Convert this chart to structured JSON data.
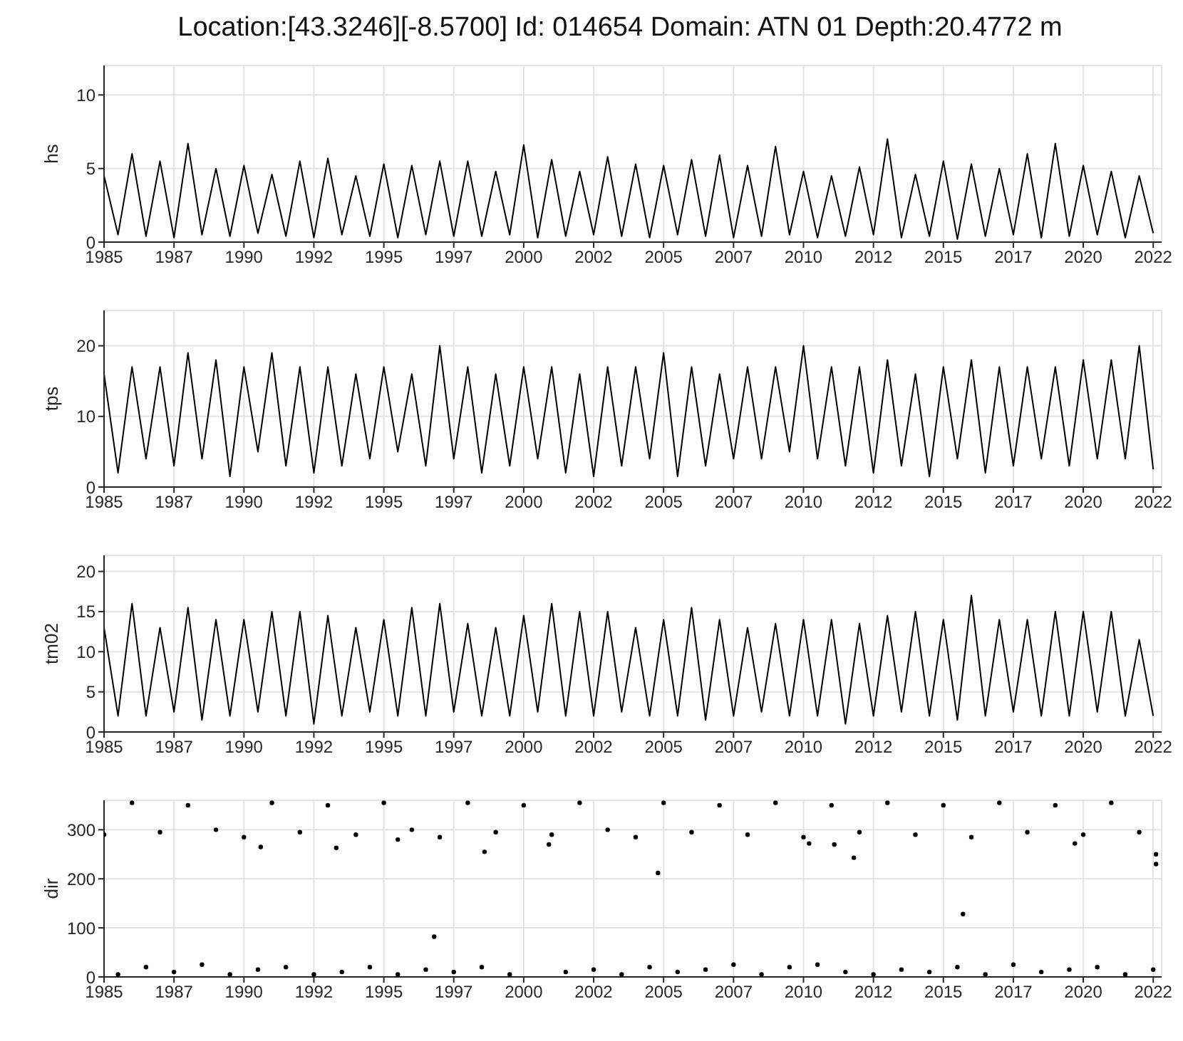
{
  "chart_data": [
    {
      "type": "line",
      "title": "Location:[43.3246][-8.5700] Id: 014654 Domain: ATN 01 Depth:20.4772 m",
      "ylabel": "hs",
      "grid": true,
      "x": [
        1985,
        1985.5,
        1986,
        1986.5,
        1987,
        1987.5,
        1988,
        1988.5,
        1989,
        1989.5,
        1990,
        1990.5,
        1991,
        1991.5,
        1992,
        1992.5,
        1993,
        1993.5,
        1994,
        1994.5,
        1995,
        1995.5,
        1996,
        1996.5,
        1997,
        1997.5,
        1998,
        1998.5,
        1999,
        1999.5,
        2000,
        2000.5,
        2001,
        2001.5,
        2002,
        2002.5,
        2003,
        2003.5,
        2004,
        2004.5,
        2005,
        2005.5,
        2006,
        2006.5,
        2007,
        2007.5,
        2008,
        2008.5,
        2009,
        2009.5,
        2010,
        2010.5,
        2011,
        2011.5,
        2012,
        2012.5,
        2013,
        2013.5,
        2014,
        2014.5,
        2015,
        2015.5,
        2016,
        2016.5,
        2017,
        2017.5,
        2018,
        2018.5,
        2019,
        2019.5,
        2020,
        2020.5,
        2021,
        2021.5,
        2022,
        2022.5
      ],
      "series": [
        {
          "color": "#000000",
          "values": [
            4.5,
            0.5,
            6.0,
            0.4,
            5.5,
            0.3,
            6.7,
            0.5,
            5.0,
            0.4,
            5.2,
            0.6,
            4.6,
            0.4,
            5.5,
            0.3,
            5.7,
            0.5,
            4.5,
            0.4,
            5.3,
            0.3,
            5.2,
            0.5,
            5.5,
            0.4,
            5.5,
            0.4,
            4.8,
            0.5,
            6.6,
            0.3,
            5.6,
            0.4,
            4.8,
            0.5,
            5.8,
            0.4,
            5.3,
            0.3,
            5.2,
            0.5,
            5.6,
            0.4,
            5.9,
            0.3,
            5.2,
            0.4,
            6.5,
            0.5,
            4.8,
            0.3,
            4.5,
            0.4,
            5.1,
            0.5,
            7.0,
            0.3,
            4.6,
            0.4,
            5.5,
            0.2,
            5.3,
            0.4,
            5.0,
            0.5,
            6.0,
            0.3,
            6.7,
            0.4,
            5.2,
            0.5,
            4.8,
            0.3,
            4.5,
            0.6
          ]
        }
      ],
      "xlim": [
        1985,
        2022.8
      ],
      "xticks": [
        1985,
        {
          "value": 1987.5,
          "label": "1987"
        },
        1990,
        {
          "value": 1992.5,
          "label": "1992"
        },
        1995,
        {
          "value": 1997.5,
          "label": "1997"
        },
        2000,
        {
          "value": 2002.5,
          "label": "2002"
        },
        2005,
        {
          "value": 2007.5,
          "label": "2007"
        },
        2010,
        {
          "value": 2012.5,
          "label": "2012"
        },
        2015,
        {
          "value": 2017.5,
          "label": "2017"
        },
        2020,
        {
          "value": 2022.5,
          "label": "2022"
        }
      ],
      "ylim": [
        0,
        12
      ],
      "yticks": [
        0,
        5,
        10
      ]
    },
    {
      "type": "line",
      "ylabel": "tps",
      "grid": true,
      "x": [
        1985,
        1985.5,
        1986,
        1986.5,
        1987,
        1987.5,
        1988,
        1988.5,
        1989,
        1989.5,
        1990,
        1990.5,
        1991,
        1991.5,
        1992,
        1992.5,
        1993,
        1993.5,
        1994,
        1994.5,
        1995,
        1995.5,
        1996,
        1996.5,
        1997,
        1997.5,
        1998,
        1998.5,
        1999,
        1999.5,
        2000,
        2000.5,
        2001,
        2001.5,
        2002,
        2002.5,
        2003,
        2003.5,
        2004,
        2004.5,
        2005,
        2005.5,
        2006,
        2006.5,
        2007,
        2007.5,
        2008,
        2008.5,
        2009,
        2009.5,
        2010,
        2010.5,
        2011,
        2011.5,
        2012,
        2012.5,
        2013,
        2013.5,
        2014,
        2014.5,
        2015,
        2015.5,
        2016,
        2016.5,
        2017,
        2017.5,
        2018,
        2018.5,
        2019,
        2019.5,
        2020,
        2020.5,
        2021,
        2021.5,
        2022,
        2022.5
      ],
      "series": [
        {
          "color": "#000000",
          "values": [
            16,
            2,
            17,
            4,
            17,
            3,
            19,
            4,
            18,
            1.5,
            17,
            5,
            19,
            3,
            17,
            2,
            17,
            3,
            16,
            4,
            17,
            5,
            16,
            3,
            20,
            4,
            17,
            2,
            16,
            3,
            17,
            4,
            17,
            2,
            16,
            1.5,
            17,
            3,
            17,
            4,
            19,
            1.5,
            17,
            3,
            16,
            4,
            17,
            4,
            17,
            5,
            20,
            4,
            17,
            3,
            17,
            2,
            18,
            3,
            16,
            1.5,
            17,
            4,
            18,
            2,
            17,
            3,
            17,
            4,
            17,
            3,
            18,
            4,
            18,
            4,
            20,
            2.5
          ]
        }
      ],
      "xlim": [
        1985,
        2022.8
      ],
      "xticks": [
        1985,
        {
          "value": 1987.5,
          "label": "1987"
        },
        1990,
        {
          "value": 1992.5,
          "label": "1992"
        },
        1995,
        {
          "value": 1997.5,
          "label": "1997"
        },
        2000,
        {
          "value": 2002.5,
          "label": "2002"
        },
        2005,
        {
          "value": 2007.5,
          "label": "2007"
        },
        2010,
        {
          "value": 2012.5,
          "label": "2012"
        },
        2015,
        {
          "value": 2017.5,
          "label": "2017"
        },
        2020,
        {
          "value": 2022.5,
          "label": "2022"
        }
      ],
      "ylim": [
        0,
        25
      ],
      "yticks": [
        0,
        10,
        20
      ]
    },
    {
      "type": "line",
      "ylabel": "tm02",
      "grid": true,
      "x": [
        1985,
        1985.5,
        1986,
        1986.5,
        1987,
        1987.5,
        1988,
        1988.5,
        1989,
        1989.5,
        1990,
        1990.5,
        1991,
        1991.5,
        1992,
        1992.5,
        1993,
        1993.5,
        1994,
        1994.5,
        1995,
        1995.5,
        1996,
        1996.5,
        1997,
        1997.5,
        1998,
        1998.5,
        1999,
        1999.5,
        2000,
        2000.5,
        2001,
        2001.5,
        2002,
        2002.5,
        2003,
        2003.5,
        2004,
        2004.5,
        2005,
        2005.5,
        2006,
        2006.5,
        2007,
        2007.5,
        2008,
        2008.5,
        2009,
        2009.5,
        2010,
        2010.5,
        2011,
        2011.5,
        2012,
        2012.5,
        2013,
        2013.5,
        2014,
        2014.5,
        2015,
        2015.5,
        2016,
        2016.5,
        2017,
        2017.5,
        2018,
        2018.5,
        2019,
        2019.5,
        2020,
        2020.5,
        2021,
        2021.5,
        2022,
        2022.5
      ],
      "series": [
        {
          "color": "#000000",
          "values": [
            13,
            2,
            16,
            2,
            13,
            2.5,
            15.5,
            1.5,
            14,
            2,
            14,
            2.5,
            15,
            2,
            15,
            1,
            14.5,
            2,
            13,
            2.5,
            14,
            2,
            15.5,
            2,
            16,
            2.5,
            13.5,
            2,
            13,
            2,
            14.5,
            2.5,
            16,
            2,
            15,
            2,
            15,
            2.5,
            13,
            2,
            14,
            2,
            15.5,
            1.5,
            14,
            2,
            13,
            2.5,
            13.5,
            2,
            14,
            2,
            14,
            1,
            13.5,
            2,
            14.5,
            2.5,
            15,
            2,
            14,
            1.5,
            17,
            2,
            14,
            2.5,
            14,
            2,
            15,
            2,
            15,
            2.5,
            15,
            2,
            11.5,
            2
          ]
        }
      ],
      "xlim": [
        1985,
        2022.8
      ],
      "xticks": [
        1985,
        {
          "value": 1987.5,
          "label": "1987"
        },
        1990,
        {
          "value": 1992.5,
          "label": "1992"
        },
        1995,
        {
          "value": 1997.5,
          "label": "1997"
        },
        2000,
        {
          "value": 2002.5,
          "label": "2002"
        },
        2005,
        {
          "value": 2007.5,
          "label": "2007"
        },
        2010,
        {
          "value": 2012.5,
          "label": "2012"
        },
        2015,
        {
          "value": 2017.5,
          "label": "2017"
        },
        2020,
        {
          "value": 2022.5,
          "label": "2022"
        }
      ],
      "ylim": [
        0,
        22
      ],
      "yticks": [
        0,
        5,
        10,
        15,
        20
      ]
    },
    {
      "type": "scatter",
      "ylabel": "dir",
      "grid": true,
      "marker": "circle",
      "series": [
        {
          "color": "#000000",
          "x": [
            1985,
            1986,
            1987,
            1988,
            1989,
            1990,
            1991,
            1992,
            1993,
            1994,
            1995,
            1996,
            1997,
            1998,
            1999,
            2000,
            2001,
            2002,
            2003,
            2004,
            2005,
            2006,
            2007,
            2008,
            2009,
            2010,
            2011,
            2012,
            2013,
            2014,
            2015,
            2016,
            2017,
            2018,
            2019,
            2020,
            2021,
            2022,
            1985.5,
            1986.5,
            1987.5,
            1988.5,
            1989.5,
            1990.5,
            1991.5,
            1992.5,
            1993.5,
            1994.5,
            1995.5,
            1996.5,
            1997.5,
            1998.5,
            1999.5,
            2001.5,
            2002.5,
            2003.5,
            2004.5,
            2005.5,
            2006.5,
            2007.5,
            2008.5,
            2009.5,
            2010.5,
            2011.5,
            2012.5,
            2013.5,
            2014.5,
            2015.5,
            2016.5,
            2017.5,
            2018.5,
            2019.5,
            2020.5,
            2021.5,
            2022.5,
            1990.6,
            1993.3,
            1995.5,
            1996.8,
            1998.6,
            2000.9,
            2004.8,
            2010.2,
            2011.1,
            2011.8,
            2015.7,
            2019.7,
            2022.6,
            2022.6
          ],
          "values": [
            290,
            355,
            295,
            350,
            300,
            285,
            355,
            295,
            350,
            290,
            355,
            300,
            285,
            355,
            295,
            350,
            290,
            355,
            300,
            285,
            355,
            295,
            350,
            290,
            355,
            285,
            350,
            295,
            355,
            290,
            350,
            285,
            355,
            295,
            350,
            290,
            355,
            295,
            5,
            20,
            10,
            25,
            5,
            15,
            20,
            5,
            10,
            20,
            5,
            15,
            10,
            20,
            5,
            10,
            15,
            5,
            20,
            10,
            15,
            25,
            5,
            20,
            25,
            10,
            5,
            15,
            10,
            20,
            5,
            25,
            10,
            15,
            20,
            5,
            15,
            265,
            263,
            280,
            82,
            255,
            270,
            212,
            272,
            270,
            243,
            128,
            272,
            250,
            230
          ]
        }
      ],
      "xlim": [
        1985,
        2022.8
      ],
      "xticks": [
        1985,
        {
          "value": 1987.5,
          "label": "1987"
        },
        1990,
        {
          "value": 1992.5,
          "label": "1992"
        },
        1995,
        {
          "value": 1997.5,
          "label": "1997"
        },
        2000,
        {
          "value": 2002.5,
          "label": "2002"
        },
        2005,
        {
          "value": 2007.5,
          "label": "2007"
        },
        2010,
        {
          "value": 2012.5,
          "label": "2012"
        },
        2015,
        {
          "value": 2017.5,
          "label": "2017"
        },
        2020,
        {
          "value": 2022.5,
          "label": "2022"
        }
      ],
      "ylim": [
        0,
        360
      ],
      "yticks": [
        0,
        100,
        200,
        300
      ]
    }
  ]
}
